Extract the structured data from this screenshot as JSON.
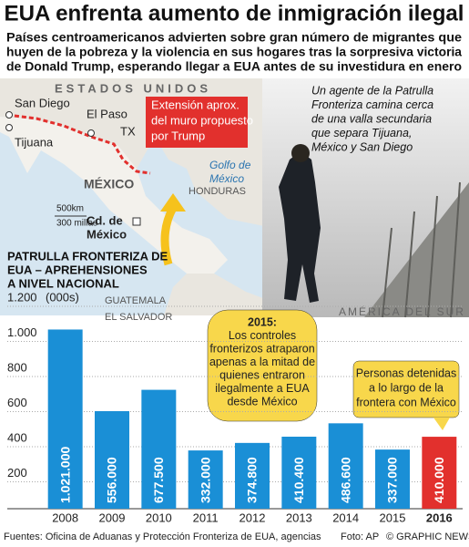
{
  "header": {
    "title": "EUA enfrenta aumento de inmigración ilegal",
    "subtitle": [
      "Países centroamericanos advierten sobre gran número de migrantes que",
      "huyen de la pobreza y la violencia en sus hogares tras la sorpresiva victoria",
      "de Donald Trump, esperando llegar a EUA antes de su investidura en enero"
    ]
  },
  "map": {
    "country_us": "ESTADOS UNIDOS",
    "san_diego": "San Diego",
    "tijuana": "Tijuana",
    "el_paso": "El Paso",
    "tx": "TX",
    "mexico": "MÉXICO",
    "gulf": [
      "Golfo de",
      "México"
    ],
    "honduras": "HONDURAS",
    "capital": [
      "Cd. de",
      "México"
    ],
    "guatemala": "GUATEMALA",
    "el_salvador": "EL SALVADOR",
    "south_america": "AMÉRICA DEL SUR",
    "scale": [
      "500km",
      "300 millas"
    ],
    "wall_note": [
      "Extensión aprox.",
      "del muro propuesto",
      "por Trump"
    ]
  },
  "photo_caption": [
    "Un agente de la Patrulla",
    "Fronteriza camina cerca",
    "de una valla secundaria",
    "que separa Tijuana,",
    "México y San Diego"
  ],
  "chart_data": {
    "type": "bar",
    "title": [
      "PATRULLA FRONTERIZA DE",
      "EUA – APREHENSIONES",
      "A NIVEL NACIONAL"
    ],
    "y_unit": "(000s)",
    "categories": [
      "2008",
      "2009",
      "2010",
      "2011",
      "2012",
      "2013",
      "2014",
      "2015",
      "2016"
    ],
    "values": [
      1021,
      556,
      677.5,
      332,
      374.8,
      410.4,
      486.6,
      337,
      410
    ],
    "value_labels": [
      "1.021.000",
      "556.000",
      "677.500",
      "332.000",
      "374.800",
      "410.400",
      "486.600",
      "337.000",
      "410.000"
    ],
    "colors": [
      "#1a8fd6",
      "#1a8fd6",
      "#1a8fd6",
      "#1a8fd6",
      "#1a8fd6",
      "#1a8fd6",
      "#1a8fd6",
      "#1a8fd6",
      "#e2302d"
    ],
    "ylim": [
      0,
      1200
    ],
    "yticks": [
      200,
      400,
      600,
      800,
      {
        "value": 1000,
        "label": "1.000"
      },
      {
        "value": 1200,
        "label": "1.200"
      }
    ],
    "grid": true,
    "annotations": [
      {
        "lines": [
          "2015:",
          "Los controles",
          "fronterizos atraparon",
          "apenas a la mitad de",
          "quienes entraron",
          "ilegalmente a EUA",
          "desde México"
        ]
      },
      {
        "lines": [
          "Personas detenidas",
          "a lo largo de la",
          "frontera con México"
        ]
      }
    ]
  },
  "footer": {
    "sources": "Fuentes: Oficina de Aduanas y Protección Fronteriza de EUA, agencias",
    "photo": "Foto: AP",
    "credit": "© GRAPHIC NEWS"
  }
}
